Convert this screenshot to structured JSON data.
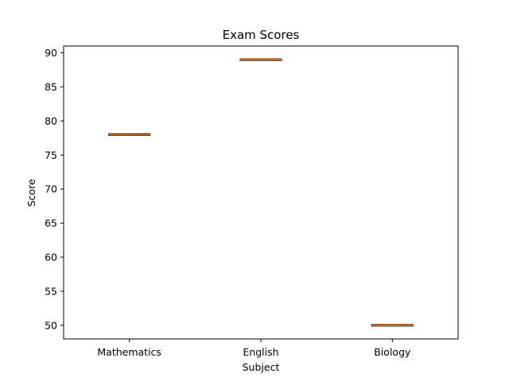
{
  "chart_data": {
    "type": "box",
    "title": "Exam Scores",
    "xlabel": "Subject",
    "ylabel": "Score",
    "categories": [
      "Mathematics",
      "English",
      "Biology"
    ],
    "values": [
      78,
      89,
      50
    ],
    "ylim": [
      48,
      91
    ],
    "yticks": [
      50,
      55,
      60,
      65,
      70,
      75,
      80,
      85,
      90
    ],
    "grid": false,
    "colors": {
      "median": "#ff7f0e",
      "box": "#000000"
    }
  }
}
